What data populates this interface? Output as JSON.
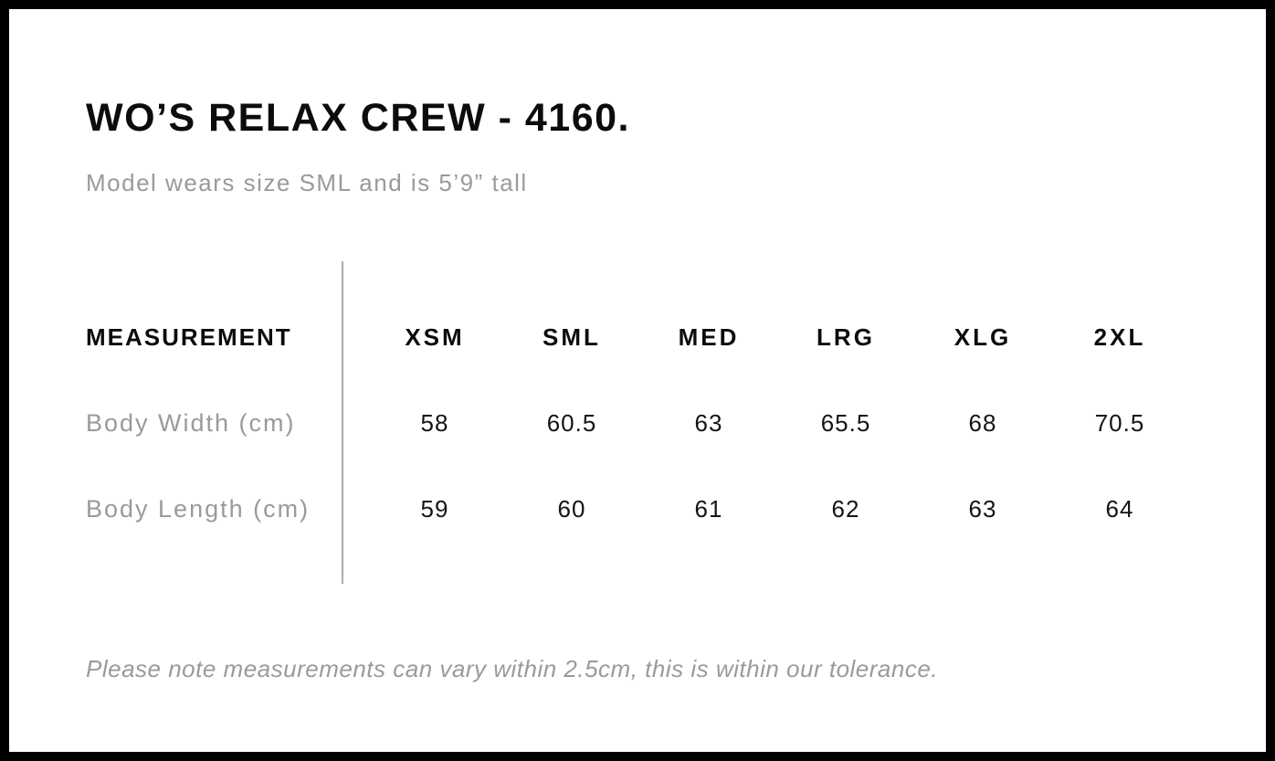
{
  "header": {
    "title": "WO’S RELAX CREW - 4160.",
    "subtitle": "Model wears size SML and is 5’9” tall"
  },
  "size_chart": {
    "measurement_header": "MEASUREMENT",
    "size_headers": [
      "XSM",
      "SML",
      "MED",
      "LRG",
      "XLG",
      "2XL"
    ],
    "rows": [
      {
        "label": "Body Width (cm)",
        "values": [
          "58",
          "60.5",
          "63",
          "65.5",
          "68",
          "70.5"
        ]
      },
      {
        "label": "Body Length (cm)",
        "values": [
          "59",
          "60",
          "61",
          "62",
          "63",
          "64"
        ]
      }
    ]
  },
  "footer": {
    "note": "Please note measurements can vary within 2.5cm, this is within our tolerance."
  },
  "chart_data": {
    "type": "table",
    "title": "WO’S RELAX CREW - 4160.",
    "columns": [
      "MEASUREMENT",
      "XSM",
      "SML",
      "MED",
      "LRG",
      "XLG",
      "2XL"
    ],
    "rows": [
      [
        "Body Width (cm)",
        58,
        60.5,
        63,
        65.5,
        68,
        70.5
      ],
      [
        "Body Length (cm)",
        59,
        60,
        61,
        62,
        63,
        64
      ]
    ],
    "notes": [
      "Model wears size SML and is 5’9” tall",
      "Please note measurements can vary within 2.5cm, this is within our tolerance."
    ]
  },
  "colors": {
    "frame": "#000000",
    "background": "#ffffff",
    "text_primary": "#0c0c0c",
    "text_muted": "#9a9a9a",
    "divider": "#ababab"
  }
}
